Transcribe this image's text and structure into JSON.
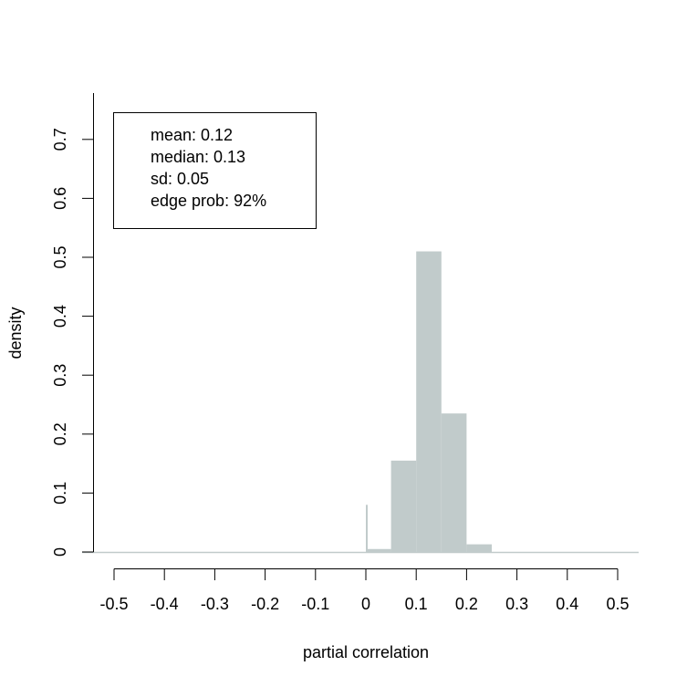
{
  "chart_data": {
    "type": "bar",
    "xlabel": "partial correlation",
    "ylabel": "density",
    "xlim": [
      -0.5,
      0.5
    ],
    "ylim": [
      0,
      0.78
    ],
    "x_ticks": [
      "-0.5",
      "-0.4",
      "-0.3",
      "-0.2",
      "-0.1",
      "0",
      "0.1",
      "0.2",
      "0.3",
      "0.4",
      "0.5"
    ],
    "x_tick_values": [
      -0.5,
      -0.4,
      -0.3,
      -0.2,
      -0.1,
      0,
      0.1,
      0.2,
      0.3,
      0.4,
      0.5
    ],
    "y_ticks": [
      "0",
      "0.1",
      "0.2",
      "0.3",
      "0.4",
      "0.5",
      "0.6",
      "0.7"
    ],
    "y_tick_values": [
      0,
      0.1,
      0.2,
      0.3,
      0.4,
      0.5,
      0.6,
      0.7
    ],
    "bars": [
      {
        "x0": 0.0,
        "x1": 0.05,
        "value": 0.005
      },
      {
        "x0": 0.05,
        "x1": 0.1,
        "value": 0.155
      },
      {
        "x0": 0.1,
        "x1": 0.15,
        "value": 0.51
      },
      {
        "x0": 0.15,
        "x1": 0.2,
        "value": 0.235
      },
      {
        "x0": 0.2,
        "x1": 0.25,
        "value": 0.013
      }
    ],
    "spike": {
      "x": 0.0,
      "value": 0.08
    },
    "bar_color": "#C1CBCB",
    "baseline_color": "#C1CBCB",
    "grid": false,
    "legend_position": "top-left",
    "stats_lines": [
      "mean: 0.12",
      "median: 0.13",
      "sd: 0.05",
      "edge prob: 92%"
    ]
  }
}
